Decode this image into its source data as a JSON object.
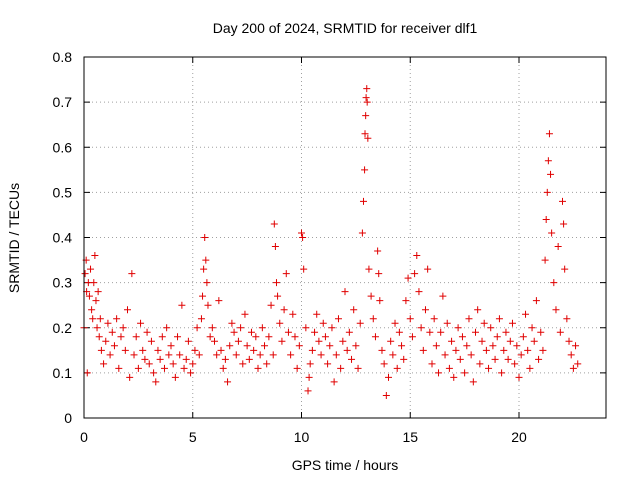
{
  "chart_data": {
    "type": "scatter",
    "title": "Day 200 of 2024, SRMTID for receiver dlf1",
    "xlabel": "GPS time / hours",
    "ylabel": "SRMTID / TECUs",
    "xlim": [
      0,
      24
    ],
    "ylim": [
      0,
      0.8
    ],
    "x_ticks": [
      0,
      5,
      10,
      15,
      20
    ],
    "x_tick_labels": [
      "0",
      "5",
      "10",
      "15",
      "20"
    ],
    "y_ticks": [
      0,
      0.1,
      0.2,
      0.3,
      0.4,
      0.5,
      0.6,
      0.7,
      0.8
    ],
    "y_tick_labels": [
      "0",
      "0.1",
      "0.2",
      "0.3",
      "0.4",
      "0.5",
      "0.6",
      "0.7",
      "0.8"
    ],
    "grid": true,
    "marker": "plus",
    "marker_color": "#e00000",
    "series": [
      {
        "name": "SRMTID",
        "points": [
          [
            0.0,
            0.2
          ],
          [
            0.05,
            0.32
          ],
          [
            0.1,
            0.35
          ],
          [
            0.12,
            0.28
          ],
          [
            0.15,
            0.1
          ],
          [
            0.2,
            0.3
          ],
          [
            0.25,
            0.27
          ],
          [
            0.3,
            0.33
          ],
          [
            0.35,
            0.24
          ],
          [
            0.4,
            0.22
          ],
          [
            0.45,
            0.3
          ],
          [
            0.5,
            0.36
          ],
          [
            0.55,
            0.26
          ],
          [
            0.6,
            0.2
          ],
          [
            0.65,
            0.28
          ],
          [
            0.7,
            0.18
          ],
          [
            0.75,
            0.22
          ],
          [
            0.8,
            0.15
          ],
          [
            0.9,
            0.12
          ],
          [
            1.0,
            0.17
          ],
          [
            1.1,
            0.21
          ],
          [
            1.2,
            0.14
          ],
          [
            1.3,
            0.19
          ],
          [
            1.4,
            0.16
          ],
          [
            1.5,
            0.22
          ],
          [
            1.6,
            0.11
          ],
          [
            1.7,
            0.18
          ],
          [
            1.8,
            0.2
          ],
          [
            1.9,
            0.15
          ],
          [
            2.0,
            0.24
          ],
          [
            2.1,
            0.09
          ],
          [
            2.2,
            0.32
          ],
          [
            2.3,
            0.14
          ],
          [
            2.4,
            0.18
          ],
          [
            2.5,
            0.11
          ],
          [
            2.6,
            0.21
          ],
          [
            2.7,
            0.15
          ],
          [
            2.8,
            0.13
          ],
          [
            2.9,
            0.19
          ],
          [
            3.0,
            0.12
          ],
          [
            3.1,
            0.17
          ],
          [
            3.2,
            0.1
          ],
          [
            3.3,
            0.08
          ],
          [
            3.4,
            0.15
          ],
          [
            3.5,
            0.13
          ],
          [
            3.6,
            0.18
          ],
          [
            3.7,
            0.11
          ],
          [
            3.8,
            0.2
          ],
          [
            3.9,
            0.14
          ],
          [
            4.0,
            0.16
          ],
          [
            4.1,
            0.12
          ],
          [
            4.2,
            0.09
          ],
          [
            4.3,
            0.18
          ],
          [
            4.4,
            0.14
          ],
          [
            4.5,
            0.25
          ],
          [
            4.6,
            0.11
          ],
          [
            4.7,
            0.13
          ],
          [
            4.8,
            0.17
          ],
          [
            4.9,
            0.1
          ],
          [
            5.0,
            0.12
          ],
          [
            5.1,
            0.15
          ],
          [
            5.2,
            0.2
          ],
          [
            5.3,
            0.14
          ],
          [
            5.4,
            0.22
          ],
          [
            5.45,
            0.27
          ],
          [
            5.5,
            0.33
          ],
          [
            5.55,
            0.4
          ],
          [
            5.6,
            0.35
          ],
          [
            5.65,
            0.3
          ],
          [
            5.7,
            0.25
          ],
          [
            5.8,
            0.18
          ],
          [
            5.9,
            0.2
          ],
          [
            6.0,
            0.17
          ],
          [
            6.1,
            0.14
          ],
          [
            6.2,
            0.26
          ],
          [
            6.3,
            0.15
          ],
          [
            6.4,
            0.11
          ],
          [
            6.5,
            0.13
          ],
          [
            6.6,
            0.08
          ],
          [
            6.7,
            0.16
          ],
          [
            6.8,
            0.21
          ],
          [
            6.9,
            0.19
          ],
          [
            7.0,
            0.14
          ],
          [
            7.1,
            0.17
          ],
          [
            7.2,
            0.2
          ],
          [
            7.3,
            0.12
          ],
          [
            7.4,
            0.23
          ],
          [
            7.5,
            0.16
          ],
          [
            7.6,
            0.13
          ],
          [
            7.7,
            0.19
          ],
          [
            7.8,
            0.15
          ],
          [
            7.9,
            0.18
          ],
          [
            8.0,
            0.11
          ],
          [
            8.1,
            0.14
          ],
          [
            8.2,
            0.2
          ],
          [
            8.3,
            0.16
          ],
          [
            8.4,
            0.12
          ],
          [
            8.5,
            0.18
          ],
          [
            8.6,
            0.25
          ],
          [
            8.7,
            0.14
          ],
          [
            8.75,
            0.43
          ],
          [
            8.8,
            0.38
          ],
          [
            8.85,
            0.3
          ],
          [
            8.9,
            0.27
          ],
          [
            9.0,
            0.21
          ],
          [
            9.1,
            0.17
          ],
          [
            9.2,
            0.24
          ],
          [
            9.3,
            0.32
          ],
          [
            9.4,
            0.19
          ],
          [
            9.5,
            0.14
          ],
          [
            9.6,
            0.23
          ],
          [
            9.7,
            0.18
          ],
          [
            9.8,
            0.11
          ],
          [
            9.9,
            0.16
          ],
          [
            10.0,
            0.41
          ],
          [
            10.05,
            0.4
          ],
          [
            10.1,
            0.33
          ],
          [
            10.2,
            0.2
          ],
          [
            10.3,
            0.06
          ],
          [
            10.35,
            0.09
          ],
          [
            10.4,
            0.12
          ],
          [
            10.5,
            0.15
          ],
          [
            10.6,
            0.19
          ],
          [
            10.7,
            0.23
          ],
          [
            10.8,
            0.17
          ],
          [
            10.9,
            0.14
          ],
          [
            11.0,
            0.21
          ],
          [
            11.1,
            0.18
          ],
          [
            11.2,
            0.12
          ],
          [
            11.3,
            0.16
          ],
          [
            11.4,
            0.2
          ],
          [
            11.5,
            0.08
          ],
          [
            11.6,
            0.14
          ],
          [
            11.7,
            0.22
          ],
          [
            11.8,
            0.11
          ],
          [
            11.9,
            0.17
          ],
          [
            12.0,
            0.28
          ],
          [
            12.1,
            0.15
          ],
          [
            12.2,
            0.19
          ],
          [
            12.3,
            0.13
          ],
          [
            12.4,
            0.24
          ],
          [
            12.5,
            0.16
          ],
          [
            12.6,
            0.11
          ],
          [
            12.7,
            0.21
          ],
          [
            12.8,
            0.41
          ],
          [
            12.85,
            0.48
          ],
          [
            12.9,
            0.55
          ],
          [
            12.92,
            0.63
          ],
          [
            12.95,
            0.67
          ],
          [
            12.97,
            0.71
          ],
          [
            13.0,
            0.73
          ],
          [
            13.02,
            0.7
          ],
          [
            13.05,
            0.62
          ],
          [
            13.1,
            0.33
          ],
          [
            13.2,
            0.27
          ],
          [
            13.3,
            0.22
          ],
          [
            13.4,
            0.18
          ],
          [
            13.5,
            0.37
          ],
          [
            13.55,
            0.32
          ],
          [
            13.6,
            0.26
          ],
          [
            13.7,
            0.15
          ],
          [
            13.8,
            0.12
          ],
          [
            13.9,
            0.05
          ],
          [
            14.0,
            0.09
          ],
          [
            14.1,
            0.17
          ],
          [
            14.2,
            0.14
          ],
          [
            14.3,
            0.21
          ],
          [
            14.4,
            0.11
          ],
          [
            14.5,
            0.19
          ],
          [
            14.6,
            0.16
          ],
          [
            14.7,
            0.13
          ],
          [
            14.8,
            0.26
          ],
          [
            14.9,
            0.31
          ],
          [
            15.0,
            0.22
          ],
          [
            15.1,
            0.18
          ],
          [
            15.2,
            0.32
          ],
          [
            15.3,
            0.36
          ],
          [
            15.4,
            0.28
          ],
          [
            15.5,
            0.2
          ],
          [
            15.6,
            0.15
          ],
          [
            15.7,
            0.24
          ],
          [
            15.8,
            0.33
          ],
          [
            15.9,
            0.19
          ],
          [
            16.0,
            0.12
          ],
          [
            16.1,
            0.22
          ],
          [
            16.2,
            0.16
          ],
          [
            16.3,
            0.1
          ],
          [
            16.4,
            0.19
          ],
          [
            16.5,
            0.27
          ],
          [
            16.6,
            0.14
          ],
          [
            16.7,
            0.21
          ],
          [
            16.8,
            0.11
          ],
          [
            16.9,
            0.17
          ],
          [
            17.0,
            0.09
          ],
          [
            17.1,
            0.15
          ],
          [
            17.2,
            0.2
          ],
          [
            17.3,
            0.13
          ],
          [
            17.4,
            0.18
          ],
          [
            17.5,
            0.1
          ],
          [
            17.6,
            0.16
          ],
          [
            17.7,
            0.22
          ],
          [
            17.8,
            0.14
          ],
          [
            17.9,
            0.08
          ],
          [
            18.0,
            0.19
          ],
          [
            18.1,
            0.24
          ],
          [
            18.2,
            0.12
          ],
          [
            18.3,
            0.17
          ],
          [
            18.4,
            0.21
          ],
          [
            18.5,
            0.15
          ],
          [
            18.6,
            0.11
          ],
          [
            18.7,
            0.2
          ],
          [
            18.8,
            0.16
          ],
          [
            18.9,
            0.13
          ],
          [
            19.0,
            0.18
          ],
          [
            19.1,
            0.22
          ],
          [
            19.2,
            0.1
          ],
          [
            19.3,
            0.15
          ],
          [
            19.4,
            0.19
          ],
          [
            19.5,
            0.13
          ],
          [
            19.6,
            0.17
          ],
          [
            19.7,
            0.21
          ],
          [
            19.8,
            0.12
          ],
          [
            19.9,
            0.16
          ],
          [
            20.0,
            0.09
          ],
          [
            20.1,
            0.14
          ],
          [
            20.2,
            0.18
          ],
          [
            20.3,
            0.23
          ],
          [
            20.4,
            0.15
          ],
          [
            20.5,
            0.11
          ],
          [
            20.6,
            0.2
          ],
          [
            20.7,
            0.17
          ],
          [
            20.8,
            0.26
          ],
          [
            20.9,
            0.13
          ],
          [
            21.0,
            0.19
          ],
          [
            21.1,
            0.15
          ],
          [
            21.2,
            0.35
          ],
          [
            21.25,
            0.44
          ],
          [
            21.3,
            0.5
          ],
          [
            21.35,
            0.57
          ],
          [
            21.4,
            0.63
          ],
          [
            21.45,
            0.54
          ],
          [
            21.5,
            0.41
          ],
          [
            21.6,
            0.3
          ],
          [
            21.7,
            0.24
          ],
          [
            21.8,
            0.38
          ],
          [
            21.9,
            0.19
          ],
          [
            22.0,
            0.48
          ],
          [
            22.05,
            0.43
          ],
          [
            22.1,
            0.33
          ],
          [
            22.2,
            0.22
          ],
          [
            22.3,
            0.17
          ],
          [
            22.4,
            0.14
          ],
          [
            22.5,
            0.11
          ],
          [
            22.6,
            0.16
          ],
          [
            22.7,
            0.12
          ]
        ]
      }
    ]
  }
}
